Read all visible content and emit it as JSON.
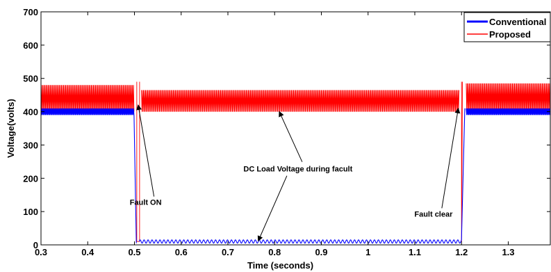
{
  "chart_data": {
    "type": "line",
    "title": "",
    "xlabel": "Time (seconds)",
    "ylabel": "Voltage(volts)",
    "xlim": [
      0.3,
      1.39
    ],
    "ylim": [
      0,
      700
    ],
    "xticks": [
      0.3,
      0.4,
      0.5,
      0.6,
      0.7,
      0.8,
      0.9,
      1,
      1.1,
      1.2,
      1.3
    ],
    "xtick_labels": [
      "0.3",
      "0.4",
      "0.5",
      "0.6",
      "0.7",
      "0.8",
      "0.9",
      "1",
      "1.1",
      "1.2",
      "1.3"
    ],
    "yticks": [
      0,
      100,
      200,
      300,
      400,
      500,
      600,
      700
    ],
    "ytick_labels": [
      "0",
      "100",
      "200",
      "300",
      "400",
      "500",
      "600",
      "700"
    ],
    "grid": false,
    "legend": {
      "position": "top-right",
      "entries": [
        "Conventional",
        "Proposed"
      ]
    },
    "series": [
      {
        "name": "Conventional",
        "color": "#0000ff",
        "description_points": [
          {
            "x": 0.3,
            "y_min": 390,
            "y_max": 410
          },
          {
            "x": 0.5,
            "y_min": 390,
            "y_max": 410
          },
          {
            "x": 0.51,
            "y_min": 5,
            "y_max": 15
          },
          {
            "x": 1.2,
            "y_min": 5,
            "y_max": 15
          },
          {
            "x": 1.21,
            "y_min": 390,
            "y_max": 410
          },
          {
            "x": 1.39,
            "y_min": 390,
            "y_max": 410
          }
        ]
      },
      {
        "name": "Proposed",
        "color": "#ff0000",
        "description_points": [
          {
            "x": 0.3,
            "y_min": 400,
            "y_max": 480
          },
          {
            "x": 0.5,
            "y_min": 400,
            "y_max": 480
          },
          {
            "x": 0.505,
            "y_min": 10,
            "y_max": 490
          },
          {
            "x": 0.515,
            "y_min": 400,
            "y_max": 465
          },
          {
            "x": 1.195,
            "y_min": 400,
            "y_max": 465
          },
          {
            "x": 1.2,
            "y_min": 10,
            "y_max": 490
          },
          {
            "x": 1.21,
            "y_min": 400,
            "y_max": 485
          },
          {
            "x": 1.39,
            "y_min": 400,
            "y_max": 485
          }
        ]
      }
    ],
    "annotations": [
      {
        "text": "Fault ON",
        "text_x": 0.524,
        "text_y": 120,
        "arrow_to": [
          0.505,
          420
        ]
      },
      {
        "text": "DC Load Voltage during facult",
        "text_x": 0.85,
        "text_y": 220,
        "arrow_up_to": [
          0.81,
          400
        ],
        "arrow_down_to": [
          0.765,
          12
        ]
      },
      {
        "text": "Fault clear",
        "text_x": 1.14,
        "text_y": 85,
        "arrow_to": [
          1.196,
          410
        ]
      }
    ]
  }
}
